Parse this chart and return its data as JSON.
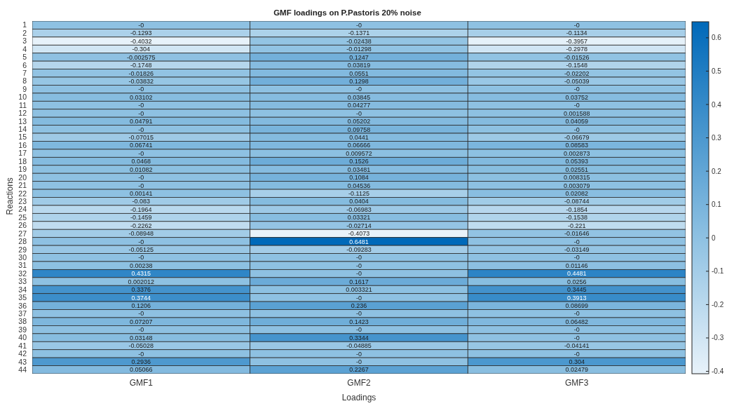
{
  "chart_data": {
    "type": "heatmap",
    "title": "GMF loadings on P.Pastoris 20% noise",
    "xlabel": "Loadings",
    "ylabel": "Reactions",
    "categories": [
      "GMF1",
      "GMF2",
      "GMF3"
    ],
    "y_categories": [
      "1",
      "2",
      "3",
      "4",
      "5",
      "6",
      "7",
      "8",
      "9",
      "10",
      "11",
      "12",
      "13",
      "14",
      "15",
      "16",
      "17",
      "18",
      "19",
      "20",
      "21",
      "22",
      "23",
      "24",
      "25",
      "26",
      "27",
      "28",
      "29",
      "30",
      "31",
      "32",
      "33",
      "34",
      "35",
      "36",
      "37",
      "38",
      "39",
      "40",
      "41",
      "42",
      "43",
      "44"
    ],
    "cells": [
      [
        0,
        0,
        0
      ],
      [
        -0.1293,
        -0.1371,
        -0.1134
      ],
      [
        -0.4032,
        -0.02438,
        -0.3957
      ],
      [
        -0.304,
        -0.01298,
        -0.2978
      ],
      [
        -0.002575,
        0.1247,
        -0.01526
      ],
      [
        -0.1748,
        0.03819,
        -0.1548
      ],
      [
        -0.01826,
        0.0551,
        -0.02202
      ],
      [
        -0.03832,
        0.1298,
        -0.05039
      ],
      [
        0,
        0,
        0
      ],
      [
        0.03102,
        0.03845,
        0.03752
      ],
      [
        0,
        0.04277,
        0
      ],
      [
        0,
        0,
        0.001588
      ],
      [
        0.04791,
        0.05202,
        0.04059
      ],
      [
        0,
        0.09758,
        0
      ],
      [
        -0.07015,
        0.0441,
        -0.06679
      ],
      [
        0.06741,
        0.06666,
        0.08583
      ],
      [
        0,
        0.009572,
        0.002873
      ],
      [
        0.0468,
        0.1526,
        0.05393
      ],
      [
        0.01082,
        0.03481,
        0.02551
      ],
      [
        0,
        0.1084,
        0.008315
      ],
      [
        0,
        0.04536,
        0.003079
      ],
      [
        0.00141,
        -0.1125,
        0.02082
      ],
      [
        -0.083,
        0.0404,
        -0.08744
      ],
      [
        -0.1964,
        -0.06983,
        -0.1854
      ],
      [
        -0.1459,
        0.03321,
        -0.1538
      ],
      [
        -0.2262,
        -0.02714,
        -0.221
      ],
      [
        -0.08948,
        -0.4073,
        -0.01646
      ],
      [
        0,
        0.6481,
        0
      ],
      [
        -0.05125,
        -0.09283,
        -0.03149
      ],
      [
        0,
        0,
        0
      ],
      [
        0.00238,
        0,
        0.01146
      ],
      [
        0.4315,
        0,
        0.4481
      ],
      [
        0.002012,
        0.1617,
        0.0256
      ],
      [
        0.3376,
        0.003321,
        0.3445
      ],
      [
        0.3744,
        0,
        0.3913
      ],
      [
        0.1206,
        0.236,
        0.08699
      ],
      [
        0,
        0,
        0
      ],
      [
        0.07207,
        0.1423,
        0.06482
      ],
      [
        0,
        0,
        0
      ],
      [
        0.03148,
        0.3344,
        0
      ],
      [
        -0.05028,
        -0.04885,
        -0.04141
      ],
      [
        0,
        0,
        0
      ],
      [
        0.2936,
        0,
        0.304
      ],
      [
        0.05066,
        0.2267,
        0.02479
      ]
    ],
    "cell_labels": [
      [
        "-0",
        "-0",
        "-0"
      ],
      [
        "-0.1293",
        "-0.1371",
        "-0.1134"
      ],
      [
        "-0.4032",
        "-0.02438",
        "-0.3957"
      ],
      [
        "-0.304",
        "-0.01298",
        "-0.2978"
      ],
      [
        "-0.002575",
        "0.1247",
        "-0.01526"
      ],
      [
        "-0.1748",
        "0.03819",
        "-0.1548"
      ],
      [
        "-0.01826",
        "0.0551",
        "-0.02202"
      ],
      [
        "-0.03832",
        "0.1298",
        "-0.05039"
      ],
      [
        "-0",
        "-0",
        "-0"
      ],
      [
        "0.03102",
        "0.03845",
        "0.03752"
      ],
      [
        "-0",
        "0.04277",
        "-0"
      ],
      [
        "-0",
        "-0",
        "0.001588"
      ],
      [
        "0.04791",
        "0.05202",
        "0.04059"
      ],
      [
        "-0",
        "0.09758",
        "-0"
      ],
      [
        "-0.07015",
        "0.0441",
        "-0.06679"
      ],
      [
        "0.06741",
        "0.06666",
        "0.08583"
      ],
      [
        "-0",
        "0.009572",
        "0.002873"
      ],
      [
        "0.0468",
        "0.1526",
        "0.05393"
      ],
      [
        "0.01082",
        "0.03481",
        "0.02551"
      ],
      [
        "-0",
        "0.1084",
        "0.008315"
      ],
      [
        "-0",
        "0.04536",
        "0.003079"
      ],
      [
        "0.00141",
        "-0.1125",
        "0.02082"
      ],
      [
        "-0.083",
        "0.0404",
        "-0.08744"
      ],
      [
        "-0.1964",
        "-0.06983",
        "-0.1854"
      ],
      [
        "-0.1459",
        "0.03321",
        "-0.1538"
      ],
      [
        "-0.2262",
        "-0.02714",
        "-0.221"
      ],
      [
        "-0.08948",
        "-0.4073",
        "-0.01646"
      ],
      [
        "-0",
        "0.6481",
        "-0"
      ],
      [
        "-0.05125",
        "-0.09283",
        "-0.03149"
      ],
      [
        "-0",
        "-0",
        "-0"
      ],
      [
        "0.00238",
        "-0",
        "0.01146"
      ],
      [
        "0.4315",
        "-0",
        "0.4481"
      ],
      [
        "0.002012",
        "0.1617",
        "0.0256"
      ],
      [
        "0.3376",
        "0.003321",
        "0.3445"
      ],
      [
        "0.3744",
        "-0",
        "0.3913"
      ],
      [
        "0.1206",
        "0.236",
        "0.08699"
      ],
      [
        "-0",
        "-0",
        "-0"
      ],
      [
        "0.07207",
        "0.1423",
        "0.06482"
      ],
      [
        "-0",
        "-0",
        "-0"
      ],
      [
        "0.03148",
        "0.3344",
        "-0"
      ],
      [
        "-0.05028",
        "-0.04885",
        "-0.04141"
      ],
      [
        "-0",
        "-0",
        "-0"
      ],
      [
        "0.2936",
        "-0",
        "0.304"
      ],
      [
        "0.05066",
        "0.2267",
        "0.02479"
      ]
    ],
    "clim": [
      -0.4073,
      0.6481
    ],
    "cticks": [
      -0.4,
      -0.3,
      -0.2,
      -0.1,
      0,
      0.1,
      0.2,
      0.3,
      0.4,
      0.5,
      0.6
    ]
  }
}
